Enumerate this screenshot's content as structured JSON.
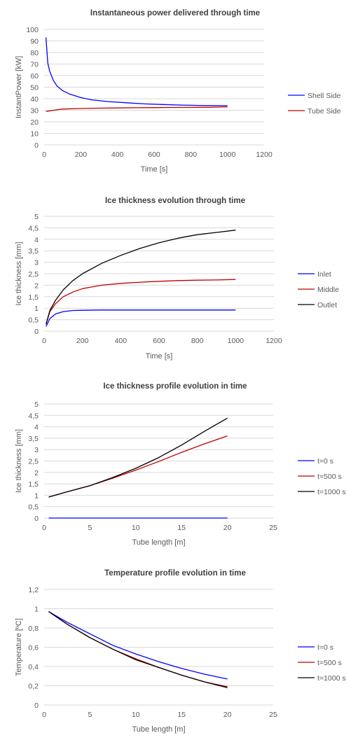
{
  "chart_data": [
    {
      "type": "line",
      "title": "Instantaneous power delivered through time",
      "xlabel": "Time [s]",
      "ylabel": "InstantPower [kW]",
      "xlim": [
        0,
        1200
      ],
      "ylim": [
        0,
        100
      ],
      "xticks": [
        0,
        200,
        400,
        600,
        800,
        1000,
        1200
      ],
      "yticks": [
        0,
        10,
        20,
        30,
        40,
        50,
        60,
        70,
        80,
        90,
        100
      ],
      "grid": true,
      "legend": "right",
      "series": [
        {
          "name": "Shell Side",
          "color": "#0000ff",
          "x": [
            10,
            20,
            30,
            50,
            70,
            100,
            140,
            200,
            260,
            350,
            450,
            550,
            650,
            750,
            850,
            1000
          ],
          "y": [
            93,
            71,
            64,
            56,
            51,
            47,
            44,
            41,
            39,
            37.5,
            36.5,
            35.5,
            35,
            34.5,
            34.2,
            34
          ]
        },
        {
          "name": "Tube Side",
          "color": "#c00000",
          "x": [
            10,
            50,
            100,
            200,
            300,
            400,
            500,
            600,
            700,
            800,
            900,
            1000
          ],
          "y": [
            29,
            30,
            31,
            31.5,
            31.8,
            32,
            32.2,
            32.3,
            32.4,
            32.5,
            32.6,
            33
          ]
        }
      ]
    },
    {
      "type": "line",
      "title": "Ice thickness evolution through time",
      "xlabel": "Time [s]",
      "ylabel": "Ice thickness [mm]",
      "xlim": [
        0,
        1200
      ],
      "ylim": [
        0,
        5
      ],
      "xticks": [
        0,
        200,
        400,
        600,
        800,
        1000,
        1200
      ],
      "yticks": [
        "0",
        "0,5",
        "1",
        "1,5",
        "2",
        "2,5",
        "3",
        "3,5",
        "4",
        "4,5",
        "5"
      ],
      "grid": true,
      "legend": "right",
      "series": [
        {
          "name": "Inlet",
          "color": "#0000ff",
          "x": [
            10,
            30,
            60,
            100,
            150,
            200,
            300,
            400,
            600,
            800,
            1000
          ],
          "y": [
            0.2,
            0.55,
            0.75,
            0.85,
            0.9,
            0.91,
            0.92,
            0.92,
            0.92,
            0.92,
            0.92
          ]
        },
        {
          "name": "Middle",
          "color": "#c00000",
          "x": [
            10,
            30,
            60,
            100,
            150,
            200,
            300,
            400,
            500,
            600,
            700,
            800,
            900,
            1000
          ],
          "y": [
            0.3,
            0.85,
            1.2,
            1.5,
            1.7,
            1.85,
            2.0,
            2.08,
            2.13,
            2.17,
            2.2,
            2.22,
            2.23,
            2.25
          ]
        },
        {
          "name": "Outlet",
          "color": "#000000",
          "x": [
            10,
            30,
            60,
            100,
            150,
            200,
            300,
            400,
            500,
            600,
            700,
            800,
            900,
            1000
          ],
          "y": [
            0.3,
            0.9,
            1.35,
            1.8,
            2.2,
            2.5,
            2.95,
            3.3,
            3.6,
            3.85,
            4.05,
            4.2,
            4.3,
            4.4
          ]
        }
      ]
    },
    {
      "type": "line",
      "title": "Ice thickness profile evolution in time",
      "xlabel": "Tube length [m]",
      "ylabel": "Ice thickness [mm]",
      "xlim": [
        0,
        25
      ],
      "ylim": [
        0,
        5
      ],
      "xticks": [
        0,
        5,
        10,
        15,
        20,
        25
      ],
      "yticks": [
        "0",
        "0,5",
        "1",
        "1,5",
        "2",
        "2,5",
        "3",
        "3,5",
        "4",
        "4,5",
        "5"
      ],
      "grid": true,
      "legend": "right",
      "series": [
        {
          "name": "t=0 s",
          "color": "#0000ff",
          "x": [
            0.5,
            20
          ],
          "y": [
            0,
            0
          ]
        },
        {
          "name": "t=500 s",
          "color": "#c00000",
          "x": [
            0.5,
            2.5,
            5,
            7.5,
            10,
            12.5,
            15,
            17.5,
            20
          ],
          "y": [
            0.92,
            1.15,
            1.42,
            1.75,
            2.1,
            2.48,
            2.88,
            3.25,
            3.6
          ]
        },
        {
          "name": "t=1000 s",
          "color": "#000000",
          "x": [
            0.5,
            2.5,
            5,
            7.5,
            10,
            12.5,
            15,
            17.5,
            20
          ],
          "y": [
            0.92,
            1.15,
            1.42,
            1.78,
            2.18,
            2.65,
            3.2,
            3.8,
            4.38
          ]
        }
      ]
    },
    {
      "type": "line",
      "title": "Temperature profile evolution in time",
      "xlabel": "Tube length [m]",
      "ylabel": "Temperature [ºC]",
      "xlim": [
        0,
        25
      ],
      "ylim": [
        0,
        1.2
      ],
      "xticks": [
        0,
        5,
        10,
        15,
        20,
        25
      ],
      "yticks": [
        "0",
        "0,2",
        "0,4",
        "0,6",
        "0,8",
        "1",
        "1,2"
      ],
      "grid": true,
      "legend": "right",
      "series": [
        {
          "name": "t=0 s",
          "color": "#0000ff",
          "x": [
            0.5,
            2.5,
            5,
            7.5,
            10,
            12.5,
            15,
            17.5,
            20
          ],
          "y": [
            0.97,
            0.86,
            0.74,
            0.62,
            0.53,
            0.45,
            0.38,
            0.32,
            0.27
          ]
        },
        {
          "name": "t=500 s",
          "color": "#c00000",
          "x": [
            0.5,
            2.5,
            5,
            7.5,
            10,
            12.5,
            15,
            17.5,
            20
          ],
          "y": [
            0.97,
            0.84,
            0.7,
            0.58,
            0.48,
            0.39,
            0.31,
            0.24,
            0.19
          ]
        },
        {
          "name": "t=1000 s",
          "color": "#000000",
          "x": [
            0.5,
            2.5,
            5,
            7.5,
            10,
            12.5,
            15,
            17.5,
            20
          ],
          "y": [
            0.97,
            0.84,
            0.7,
            0.58,
            0.47,
            0.39,
            0.31,
            0.24,
            0.18
          ]
        }
      ]
    }
  ]
}
